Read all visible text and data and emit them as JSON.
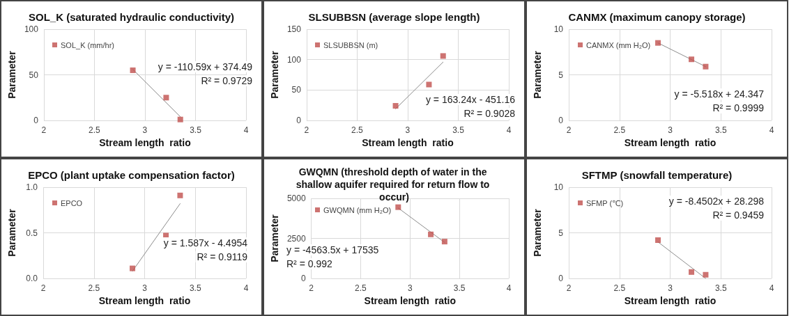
{
  "chart_data": [
    {
      "type": "scatter",
      "title": "SOL_K (saturated hydraulic conductivity)",
      "xlabel": "Stream length  ratio",
      "ylabel": "Parameter",
      "xlim": [
        2,
        4
      ],
      "xticks": [
        2,
        2.5,
        3,
        3.5,
        4
      ],
      "ylim": [
        0,
        100
      ],
      "yticks": [
        0,
        50,
        100
      ],
      "grid": true,
      "legend": "top left",
      "marker": "square",
      "series": [
        {
          "name": "SOL_K (mm/hr)",
          "color": "#c0504d",
          "x": [
            2.88,
            3.21,
            3.35
          ],
          "values": [
            55,
            25,
            1
          ]
        },
        {
          "type": "line",
          "marker": "none",
          "color": "#8c8c8c",
          "x": [
            2.88,
            3.35
          ],
          "values": [
            56,
            4
          ]
        }
      ],
      "annotations": [
        "y = -110.59x + 374.49",
        "R² = 0.9729"
      ]
    },
    {
      "type": "scatter",
      "title": "SLSUBBSN (average slope length)",
      "xlabel": "Stream length  ratio",
      "ylabel": "Parameter",
      "xlim": [
        2,
        4
      ],
      "xticks": [
        2,
        2.5,
        3,
        3.5,
        4
      ],
      "ylim": [
        0,
        150
      ],
      "yticks": [
        0,
        50,
        100,
        150
      ],
      "grid": true,
      "legend": "top left",
      "marker": "square",
      "series": [
        {
          "name": "SLSUBBSN (m)",
          "color": "#c0504d",
          "x": [
            2.88,
            3.21,
            3.35
          ],
          "values": [
            24,
            59,
            106
          ]
        },
        {
          "type": "line",
          "marker": "none",
          "color": "#8c8c8c",
          "x": [
            2.88,
            3.35
          ],
          "values": [
            19,
            96
          ]
        }
      ],
      "annotations": [
        "y = 163.24x - 451.16",
        "R² = 0.9028"
      ]
    },
    {
      "type": "scatter",
      "title": "CANMX (maximum canopy storage)",
      "xlabel": "Stream length  ratio",
      "ylabel": "Parameter",
      "xlim": [
        2,
        4
      ],
      "xticks": [
        2,
        2.5,
        3,
        3.5,
        4
      ],
      "ylim": [
        0,
        10
      ],
      "yticks": [
        0,
        5,
        10
      ],
      "grid": true,
      "legend": "top left",
      "marker": "square",
      "series": [
        {
          "name": "CANMX (mm H₂O)",
          "color": "#c0504d",
          "x": [
            2.88,
            3.21,
            3.35
          ],
          "values": [
            8.5,
            6.7,
            5.9
          ]
        },
        {
          "type": "line",
          "marker": "none",
          "color": "#8c8c8c",
          "x": [
            2.88,
            3.35
          ],
          "values": [
            8.5,
            5.9
          ]
        }
      ],
      "annotations": [
        "y = -5.518x + 24.347",
        "R² = 0.9999"
      ]
    },
    {
      "type": "scatter",
      "title": "EPCO (plant uptake compensation factor)",
      "xlabel": "Stream length  ratio",
      "ylabel": "Parameter",
      "xlim": [
        2,
        4
      ],
      "xticks": [
        2,
        2.5,
        3,
        3.5,
        4
      ],
      "ylim": [
        0,
        1
      ],
      "yticks": [
        {
          "value": 0,
          "label": "0.0"
        },
        0.5,
        {
          "value": 1,
          "label": "1.0"
        }
      ],
      "grid": true,
      "legend": "top left",
      "marker": "square",
      "series": [
        {
          "name": "EPCO",
          "color": "#c0504d",
          "x": [
            2.88,
            3.21,
            3.35
          ],
          "values": [
            0.11,
            0.47,
            0.91
          ]
        },
        {
          "type": "line",
          "marker": "none",
          "color": "#8c8c8c",
          "x": [
            2.88,
            3.35
          ],
          "values": [
            0.08,
            0.82
          ]
        }
      ],
      "annotations": [
        "y = 1.587x - 4.4954",
        "R² = 0.9119"
      ]
    },
    {
      "type": "scatter",
      "title": "GWQMN (threshold depth of water in the shallow aquifer required for return flow to occur)",
      "xlabel": "Stream length  ratio",
      "ylabel": "Parameter",
      "xlim": [
        2,
        4
      ],
      "xticks": [
        2,
        2.5,
        3,
        3.5,
        4
      ],
      "ylim": [
        0,
        5000
      ],
      "yticks": [
        0,
        2500,
        5000
      ],
      "grid": true,
      "legend": "top left",
      "marker": "square",
      "series": [
        {
          "name": "GWQMN (mm H₂O)",
          "color": "#c0504d",
          "x": [
            2.88,
            3.21,
            3.35
          ],
          "values": [
            4450,
            2750,
            2300
          ]
        },
        {
          "type": "line",
          "marker": "none",
          "color": "#8c8c8c",
          "x": [
            2.88,
            3.35
          ],
          "values": [
            4400,
            2250
          ]
        }
      ],
      "annotations": [
        "y = -4563.5x + 17535",
        "R² = 0.992"
      ]
    },
    {
      "type": "scatter",
      "title": "SFTMP (snowfall temperature)",
      "xlabel": "Stream length  ratio",
      "ylabel": "Parameter",
      "xlim": [
        2,
        4
      ],
      "xticks": [
        2,
        2.5,
        3,
        3.5,
        4
      ],
      "ylim": [
        0,
        10
      ],
      "yticks": [
        0,
        5,
        10
      ],
      "grid": true,
      "legend": "top left",
      "marker": "square",
      "series": [
        {
          "name": "SFMP (℃)",
          "color": "#c0504d",
          "x": [
            2.88,
            3.21,
            3.35
          ],
          "values": [
            4.2,
            0.7,
            0.4
          ]
        },
        {
          "type": "line",
          "marker": "none",
          "color": "#8c8c8c",
          "x": [
            2.88,
            3.35
          ],
          "values": [
            4,
            0
          ]
        }
      ],
      "annotations": [
        "y = -8.4502x + 28.298",
        "R² = 0.9459"
      ]
    }
  ]
}
